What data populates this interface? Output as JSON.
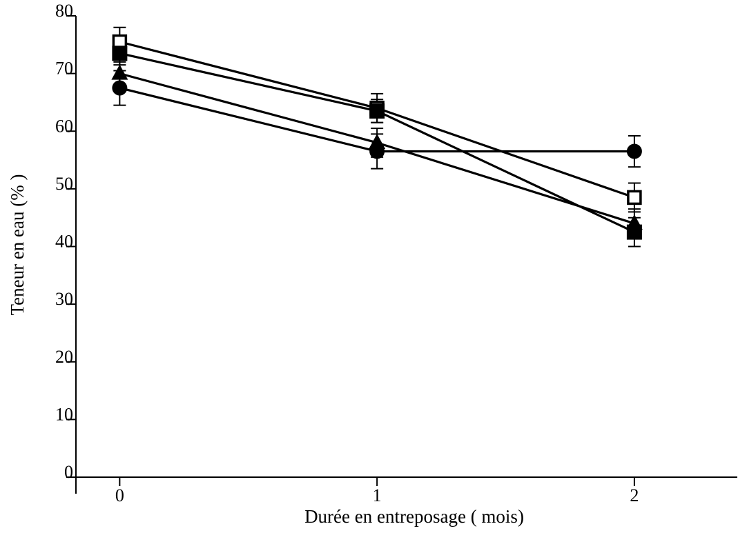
{
  "chart_data": {
    "type": "line",
    "title": "",
    "xlabel": "Durée en entreposage ( mois)",
    "ylabel": "Teneur en eau (% )",
    "x": [
      0,
      1,
      2
    ],
    "x_ticks": [
      "0",
      "1",
      "2"
    ],
    "xlim": [
      -0.17,
      2.4
    ],
    "ylim": [
      0,
      80
    ],
    "y_ticks": [
      "0",
      "10",
      "20",
      "30",
      "40",
      "50",
      "60",
      "70",
      "80"
    ],
    "grid": false,
    "legend": "none",
    "series": [
      {
        "marker": "open-square",
        "values": [
          75.5,
          64,
          48.5
        ],
        "errors": [
          2.5,
          2.5,
          2.5
        ]
      },
      {
        "marker": "filled-square",
        "values": [
          73.5,
          63.5,
          42.5
        ],
        "errors": [
          2,
          2,
          2.5
        ]
      },
      {
        "marker": "filled-triangle",
        "values": [
          70,
          58,
          44
        ],
        "errors": [
          2,
          2.5,
          2.5
        ]
      },
      {
        "marker": "filled-circle",
        "values": [
          67.5,
          56.5,
          56.5
        ],
        "errors": [
          3,
          3,
          2.7
        ]
      }
    ]
  }
}
